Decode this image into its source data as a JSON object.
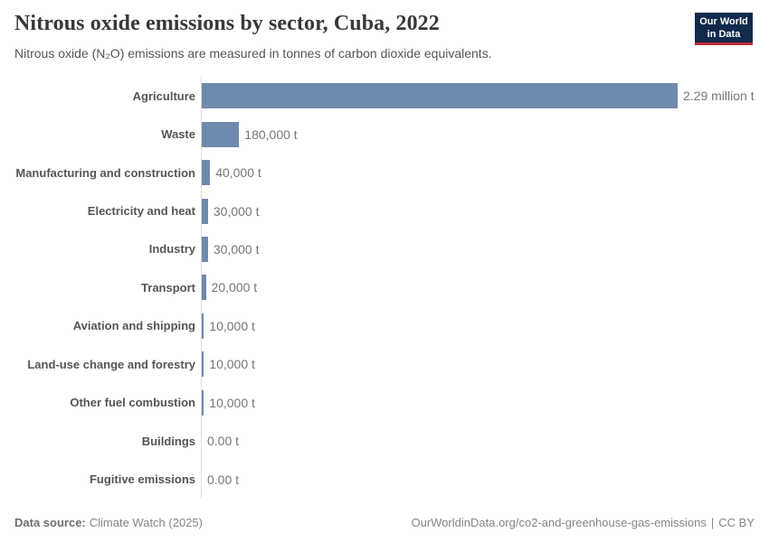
{
  "header": {
    "title": "Nitrous oxide emissions by sector, Cuba, 2022",
    "subtitle": "Nitrous oxide (N₂O) emissions are measured in tonnes of carbon dioxide equivalents.",
    "logo_line1": "Our World",
    "logo_line2": "in Data"
  },
  "chart_data": {
    "type": "bar",
    "orientation": "horizontal",
    "title": "Nitrous oxide emissions by sector, Cuba, 2022",
    "unit": "tonnes of carbon dioxide equivalents",
    "grid": false,
    "xlim": [
      0,
      2290000
    ],
    "categories": [
      "Agriculture",
      "Waste",
      "Manufacturing and construction",
      "Electricity and heat",
      "Industry",
      "Transport",
      "Aviation and shipping",
      "Land-use change and forestry",
      "Other fuel combustion",
      "Buildings",
      "Fugitive emissions"
    ],
    "values": [
      2290000,
      180000,
      40000,
      30000,
      30000,
      20000,
      10000,
      10000,
      10000,
      0,
      0
    ],
    "value_labels": [
      "2.29 million t",
      "180,000 t",
      "40,000 t",
      "30,000 t",
      "30,000 t",
      "20,000 t",
      "10,000 t",
      "10,000 t",
      "10,000 t",
      "0.00 t",
      "0.00 t"
    ],
    "bar_color": "#7089ae"
  },
  "footer": {
    "data_source_label": "Data source:",
    "data_source_value": "Climate Watch (2025)",
    "link": "OurWorldinData.org/co2-and-greenhouse-gas-emissions",
    "divider": "|",
    "license": "CC BY"
  },
  "colors": {
    "bar": "#7089ae",
    "axis": "#dddddd",
    "logo_bg": "#122a4d",
    "logo_stripe": "#c12933",
    "title_text": "#383838",
    "label_text": "#555555",
    "value_text": "#767676"
  }
}
